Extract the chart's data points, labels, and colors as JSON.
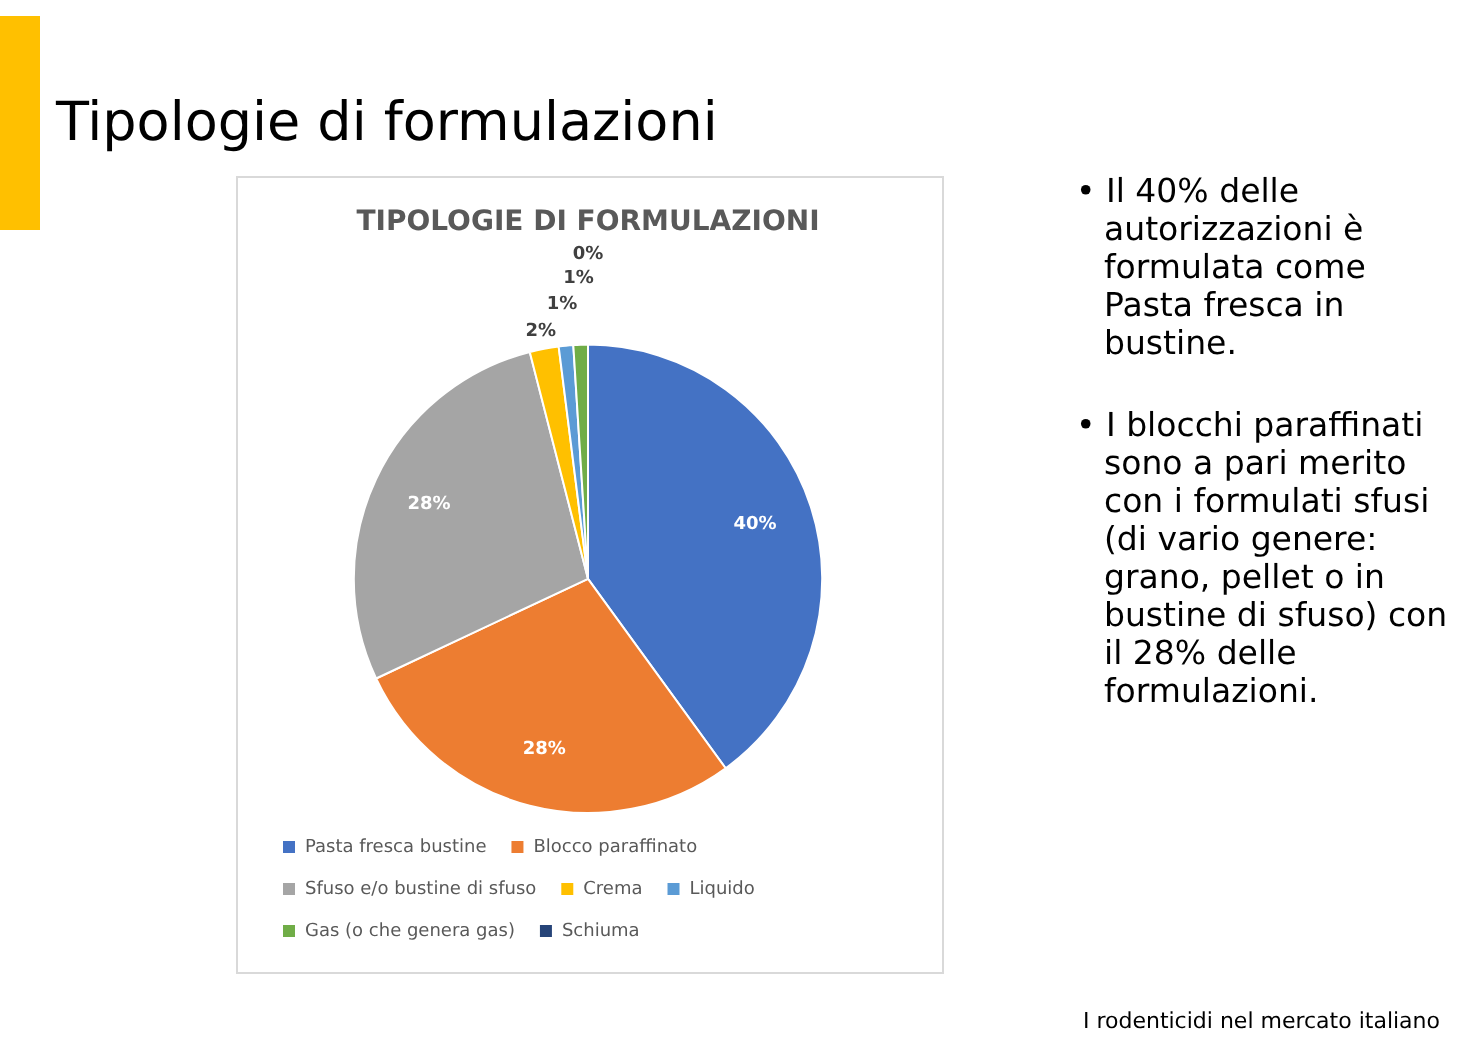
{
  "chart_data": {
    "type": "pie",
    "title": "TIPOLOGIE DI FORMULAZIONI",
    "categories": [
      "Pasta fresca bustine",
      "Blocco paraffinato",
      "Sfuso e/o bustine di sfuso",
      "Crema",
      "Liquido",
      "Gas (o che genera gas)",
      "Schiuma"
    ],
    "values": [
      40,
      28,
      28,
      2,
      1,
      1,
      0
    ],
    "colors": [
      "#4472c4",
      "#ed7d31",
      "#a5a5a5",
      "#ffc000",
      "#5b9bd5",
      "#70ad47",
      "#264478"
    ],
    "value_labels": [
      "40%",
      "28%",
      "28%",
      "2%",
      "1%",
      "1%",
      "0%"
    ],
    "legend": "bottom",
    "annotations": [
      "Tipologie di formulazioni",
      "• Il 40% delle autorizzazioni è formulata come Pasta fresca in bustine.",
      "• I blocchi paraffinati sono a pari merito con i formulati sfusi (di vario genere: grano, pellet o in bustine di sfuso) con il 28% delle formulazioni.",
      "I rodenticidi nel mercato italiano"
    ]
  }
}
